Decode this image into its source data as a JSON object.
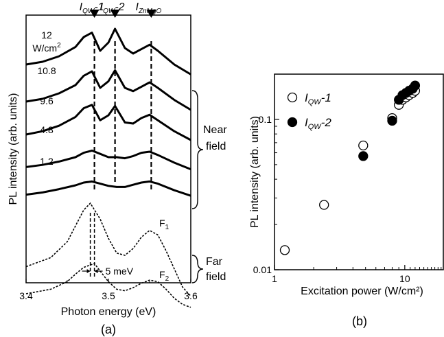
{
  "chart_data": [
    {
      "panel": "(a)",
      "type": "line",
      "xlabel": "Photon energy (eV)",
      "ylabel": "PL intensity (arb. units)",
      "xlim": [
        3.4,
        3.6
      ],
      "x_ticks": [
        "3.4",
        "3.5",
        "3.6"
      ],
      "x_tick_values": [
        3.4,
        3.5,
        3.6
      ],
      "peaks": [
        {
          "label_main": "I",
          "label_sub": "QW",
          "label_suffix": "-1",
          "energy": 3.483
        },
        {
          "label_main": "I",
          "label_sub": "QW",
          "label_suffix": "-2",
          "energy": 3.508
        },
        {
          "label_main": "I",
          "label_sub": "ZnMgO",
          "label_suffix": "",
          "energy": 3.552
        }
      ],
      "near_field": {
        "group_label": [
          "Near",
          "field"
        ],
        "unit_label": "W/cm",
        "unit_superscript": "2",
        "series": [
          {
            "power": "12",
            "x": [
              3.4,
              3.42,
              3.44,
              3.46,
              3.47,
              3.48,
              3.49,
              3.5,
              3.508,
              3.52,
              3.53,
              3.54,
              3.55,
              3.56,
              3.58,
              3.6
            ],
            "y": [
              0.3,
              0.35,
              0.45,
              0.62,
              0.8,
              0.88,
              0.55,
              0.7,
              0.95,
              0.6,
              0.5,
              0.58,
              0.66,
              0.55,
              0.3,
              0.12
            ]
          },
          {
            "power": "10.8",
            "x": [
              3.4,
              3.42,
              3.44,
              3.46,
              3.47,
              3.48,
              3.49,
              3.5,
              3.508,
              3.52,
              3.53,
              3.54,
              3.55,
              3.56,
              3.58,
              3.6
            ],
            "y": [
              0.25,
              0.3,
              0.4,
              0.55,
              0.72,
              0.8,
              0.5,
              0.62,
              0.82,
              0.5,
              0.44,
              0.52,
              0.6,
              0.5,
              0.28,
              0.1
            ]
          },
          {
            "power": "9.6",
            "x": [
              3.4,
              3.42,
              3.44,
              3.46,
              3.47,
              3.48,
              3.49,
              3.5,
              3.508,
              3.52,
              3.53,
              3.54,
              3.55,
              3.56,
              3.58,
              3.6
            ],
            "y": [
              0.2,
              0.26,
              0.36,
              0.52,
              0.68,
              0.74,
              0.46,
              0.55,
              0.72,
              0.42,
              0.4,
              0.5,
              0.56,
              0.46,
              0.26,
              0.1
            ]
          },
          {
            "power": "4.8",
            "x": [
              3.4,
              3.42,
              3.44,
              3.46,
              3.47,
              3.48,
              3.49,
              3.5,
              3.51,
              3.52,
              3.53,
              3.54,
              3.55,
              3.56,
              3.58,
              3.6
            ],
            "y": [
              0.12,
              0.16,
              0.22,
              0.3,
              0.38,
              0.42,
              0.36,
              0.3,
              0.3,
              0.28,
              0.32,
              0.38,
              0.4,
              0.34,
              0.2,
              0.08
            ]
          },
          {
            "power": "1.2",
            "x": [
              3.4,
              3.42,
              3.44,
              3.46,
              3.47,
              3.48,
              3.49,
              3.5,
              3.51,
              3.52,
              3.53,
              3.54,
              3.55,
              3.56,
              3.58,
              3.6
            ],
            "y": [
              0.08,
              0.12,
              0.18,
              0.25,
              0.3,
              0.32,
              0.28,
              0.24,
              0.22,
              0.22,
              0.26,
              0.3,
              0.32,
              0.28,
              0.16,
              0.06
            ]
          }
        ]
      },
      "far_field": {
        "group_label": [
          "Far",
          "field"
        ],
        "series": [
          {
            "name_main": "F",
            "name_sub": "1",
            "x": [
              3.4,
              3.43,
              3.45,
              3.46,
              3.47,
              3.478,
              3.49,
              3.5,
              3.51,
              3.52,
              3.53,
              3.54,
              3.55,
              3.56,
              3.57,
              3.58,
              3.59,
              3.6
            ],
            "y": [
              0.3,
              0.38,
              0.52,
              0.66,
              0.8,
              0.86,
              0.72,
              0.55,
              0.42,
              0.4,
              0.46,
              0.56,
              0.62,
              0.58,
              0.44,
              0.28,
              0.12,
              0.04
            ]
          },
          {
            "name_main": "F",
            "name_sub": "2",
            "x": [
              3.4,
              3.43,
              3.45,
              3.46,
              3.47,
              3.483,
              3.49,
              3.5,
              3.51,
              3.52,
              3.53,
              3.54,
              3.55,
              3.56,
              3.57,
              3.58,
              3.59,
              3.6
            ],
            "y": [
              0.2,
              0.26,
              0.36,
              0.46,
              0.55,
              0.6,
              0.5,
              0.36,
              0.26,
              0.24,
              0.28,
              0.34,
              0.38,
              0.36,
              0.26,
              0.14,
              0.06,
              0.02
            ]
          }
        ],
        "shift_label": "5 meV"
      }
    },
    {
      "panel": "(b)",
      "type": "scatter",
      "xlabel": "Excitation power (W/cm²)",
      "ylabel": "PL intensity (arb. units)",
      "x_scale": "log",
      "y_scale": "log",
      "xlim": [
        1,
        20
      ],
      "ylim": [
        0.01,
        0.2
      ],
      "x_ticks": [
        "1",
        "10"
      ],
      "x_tick_values": [
        1,
        10
      ],
      "y_ticks": [
        "0.01",
        "0.1"
      ],
      "y_tick_values": [
        0.01,
        0.1
      ],
      "series": [
        {
          "name_main": "I",
          "name_sub": "QW",
          "name_suffix": "-1",
          "marker": "open-circle",
          "x": [
            1.2,
            2.4,
            4.8,
            8.0,
            9.0,
            9.6,
            10.2,
            10.8,
            11.5,
            12.0
          ],
          "y": [
            0.0135,
            0.027,
            0.067,
            0.102,
            0.125,
            0.135,
            0.14,
            0.145,
            0.15,
            0.155
          ]
        },
        {
          "name_main": "I",
          "name_sub": "QW",
          "name_suffix": "-2",
          "marker": "filled-circle",
          "x": [
            4.8,
            8.0,
            9.0,
            9.6,
            10.2,
            10.8,
            11.5,
            12.0
          ],
          "y": [
            0.057,
            0.098,
            0.135,
            0.145,
            0.15,
            0.155,
            0.16,
            0.168
          ]
        }
      ]
    }
  ]
}
